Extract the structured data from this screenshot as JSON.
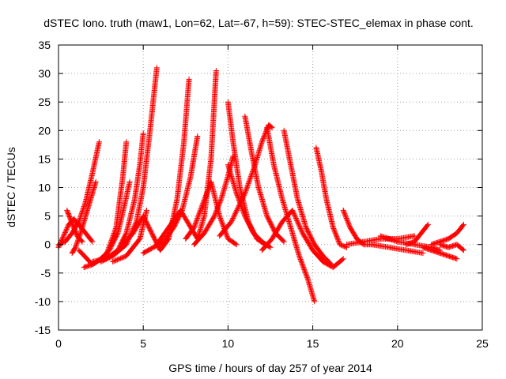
{
  "chart_data": {
    "type": "scatter",
    "title": "dSTEC Iono. truth (maw1, Lon=62, Lat=-67, h=59): STEC-STEC_elemax in phase cont.",
    "xlabel": "GPS time / hours of day 257 of year 2014",
    "ylabel": "dSTEC  / TECUs",
    "xlim": [
      0,
      25
    ],
    "ylim": [
      -15,
      35
    ],
    "xticks": [
      0,
      5,
      10,
      15,
      20,
      25
    ],
    "yticks": [
      -15,
      -10,
      -5,
      0,
      5,
      10,
      15,
      20,
      25,
      30,
      35
    ],
    "grid": true,
    "marker": "plus",
    "color": "#ff0000",
    "series": [
      {
        "x": [
          0.0,
          0.4,
          0.8,
          1.2,
          1.6,
          2.0,
          2.4
        ],
        "y": [
          0.0,
          0.5,
          2.0,
          4.0,
          7.5,
          12.5,
          18.0
        ]
      },
      {
        "x": [
          0.0,
          0.3,
          0.6,
          0.9,
          1.2,
          1.6,
          2.0
        ],
        "y": [
          -0.5,
          1.5,
          3.5,
          4.5,
          3.5,
          2.0,
          0.5
        ]
      },
      {
        "x": [
          0.5,
          0.7,
          0.9,
          1.1,
          1.4
        ],
        "y": [
          6.0,
          4.5,
          3.0,
          1.5,
          0.5
        ]
      },
      {
        "x": [
          0.8,
          1.0,
          1.3,
          1.6,
          1.9,
          2.2
        ],
        "y": [
          -1.5,
          -0.5,
          2.0,
          5.0,
          8.0,
          11.0
        ]
      },
      {
        "x": [
          1.5,
          2.0,
          2.5,
          3.0,
          3.5,
          3.9,
          4.2
        ],
        "y": [
          -4.0,
          -3.5,
          -2.5,
          -1.0,
          2.0,
          7.0,
          11.0
        ]
      },
      {
        "x": [
          1.2,
          2.0,
          2.8,
          3.4,
          3.8,
          4.0
        ],
        "y": [
          -1.0,
          -3.5,
          -2.0,
          3.0,
          12.0,
          18.0
        ]
      },
      {
        "x": [
          2.0,
          2.8,
          3.5,
          4.0,
          4.5,
          4.8,
          5.0
        ],
        "y": [
          -3.0,
          -2.5,
          -1.0,
          2.0,
          8.0,
          14.0,
          19.5
        ]
      },
      {
        "x": [
          2.5,
          3.2,
          4.0,
          4.6,
          5.0,
          5.4,
          5.8
        ],
        "y": [
          -3.0,
          -2.0,
          0.0,
          4.0,
          10.0,
          20.0,
          31.0
        ]
      },
      {
        "x": [
          3.2,
          4.0,
          4.8,
          5.2
        ],
        "y": [
          -3.0,
          -2.0,
          1.0,
          6.0
        ]
      },
      {
        "x": [
          3.8,
          4.4,
          5.0,
          5.5,
          6.0,
          6.5,
          7.0,
          7.4,
          7.7
        ],
        "y": [
          0.0,
          2.0,
          5.0,
          2.0,
          -1.0,
          1.0,
          8.0,
          18.0,
          29.0
        ]
      },
      {
        "x": [
          5.0,
          5.6,
          6.2,
          6.8,
          7.3,
          7.8,
          8.2
        ],
        "y": [
          -1.5,
          -0.5,
          0.5,
          3.0,
          6.0,
          12.0,
          19.0
        ]
      },
      {
        "x": [
          5.8,
          6.5,
          7.2,
          7.8,
          8.2,
          8.6,
          9.0,
          9.3
        ],
        "y": [
          0.0,
          3.0,
          6.0,
          3.0,
          1.0,
          5.0,
          15.0,
          30.5
        ]
      },
      {
        "x": [
          8.0,
          8.6,
          9.2,
          9.6,
          10.0,
          10.3
        ],
        "y": [
          0.0,
          2.0,
          5.0,
          8.0,
          12.0,
          15.5
        ]
      },
      {
        "x": [
          7.5,
          8.0,
          8.5,
          9.0,
          9.5,
          10.0,
          10.5
        ],
        "y": [
          1.0,
          3.0,
          7.0,
          11.0,
          5.0,
          1.0,
          0.0
        ]
      },
      {
        "x": [
          10.0,
          10.3,
          10.7,
          11.2,
          11.7,
          12.2
        ],
        "y": [
          25.0,
          18.0,
          10.0,
          4.0,
          1.0,
          0.0
        ]
      },
      {
        "x": [
          10.0,
          10.5,
          11.0,
          11.5,
          12.0,
          12.5
        ],
        "y": [
          14.0,
          9.0,
          5.0,
          2.0,
          0.5,
          -0.5
        ]
      },
      {
        "x": [
          11.0,
          11.4,
          11.8,
          12.3,
          12.8,
          13.3
        ],
        "y": [
          22.5,
          16.0,
          10.0,
          5.0,
          2.0,
          0.5
        ]
      },
      {
        "x": [
          9.5,
          10.2,
          11.0,
          11.6,
          12.0,
          12.4,
          12.6
        ],
        "y": [
          1.5,
          4.0,
          9.0,
          14.0,
          18.0,
          21.0,
          20.5
        ]
      },
      {
        "x": [
          12.3,
          12.7,
          13.2,
          13.7,
          14.2,
          14.7,
          15.1
        ],
        "y": [
          20.5,
          14.0,
          8.0,
          3.0,
          -2.0,
          -6.0,
          -10.0
        ]
      },
      {
        "x": [
          13.3,
          13.7,
          14.1,
          14.6,
          15.1,
          15.6,
          16.1
        ],
        "y": [
          20.0,
          14.0,
          8.0,
          3.0,
          0.0,
          -2.0,
          -3.5
        ]
      },
      {
        "x": [
          15.2,
          15.5,
          15.8,
          16.2,
          16.6,
          17.0
        ],
        "y": [
          17.0,
          13.0,
          8.0,
          3.0,
          0.0,
          -0.5
        ]
      },
      {
        "x": [
          12.0,
          12.6,
          13.2,
          13.8,
          14.4,
          15.0,
          15.6,
          16.2,
          16.8
        ],
        "y": [
          -1.0,
          1.0,
          4.0,
          6.0,
          2.0,
          -1.0,
          -3.0,
          -4.0,
          -2.5
        ]
      },
      {
        "x": [
          16.8,
          17.2,
          17.6,
          18.0,
          18.5
        ],
        "y": [
          6.0,
          3.0,
          1.0,
          0.0,
          0.0
        ]
      },
      {
        "x": [
          17.0,
          18.0,
          19.0,
          20.0,
          21.0
        ],
        "y": [
          0.0,
          0.5,
          1.0,
          1.0,
          1.5
        ]
      },
      {
        "x": [
          18.5,
          19.5,
          20.5,
          21.5
        ],
        "y": [
          0.0,
          -0.5,
          -1.0,
          -1.5
        ]
      },
      {
        "x": [
          20.5,
          21.0,
          21.4,
          21.8
        ],
        "y": [
          0.0,
          0.5,
          2.0,
          3.5
        ]
      },
      {
        "x": [
          19.0,
          20.0,
          21.0,
          22.0,
          22.5
        ],
        "y": [
          1.5,
          0.5,
          0.0,
          -0.5,
          -1.0
        ]
      },
      {
        "x": [
          21.5,
          22.0,
          22.5,
          23.0,
          23.5
        ],
        "y": [
          -0.5,
          -1.0,
          -1.5,
          -2.0,
          -2.5
        ]
      },
      {
        "x": [
          22.0,
          22.5,
          23.0,
          23.5,
          23.9
        ],
        "y": [
          0.0,
          0.5,
          1.0,
          2.0,
          3.5
        ]
      },
      {
        "x": [
          22.5,
          23.0,
          23.5,
          23.9
        ],
        "y": [
          0.0,
          -0.5,
          0.0,
          -1.0
        ]
      }
    ]
  }
}
